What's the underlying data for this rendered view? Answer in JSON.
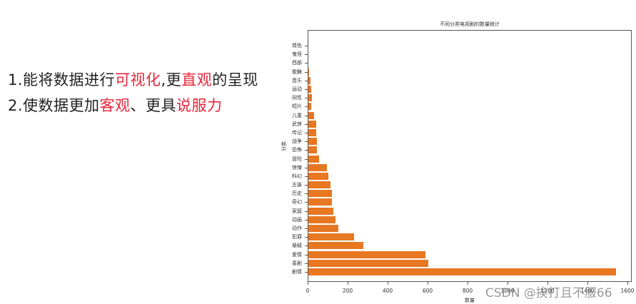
{
  "bullets": {
    "line1": {
      "prefix": "1.能将数据进行",
      "hl1": "可视化",
      "mid": ",更",
      "hl2": "直观",
      "suffix": "的呈现"
    },
    "line2": {
      "prefix": "2.使数据更加",
      "hl1": "客观",
      "mid": "、更具",
      "hl2": "说服力",
      "suffix": ""
    }
  },
  "colors": {
    "bar": "#e87722",
    "highlight": "#e8263a",
    "text": "#222222"
  },
  "watermark": "CSDN @挨打且不服66",
  "chart_data": {
    "type": "bar",
    "orientation": "horizontal",
    "title": "不同分类电视剧的数量统计",
    "xlabel": "数量",
    "ylabel": "分类",
    "xlim": [
      0,
      1600
    ],
    "xticks": [
      "0",
      "200",
      "400",
      "600",
      "800",
      "1000",
      "1200",
      "1400",
      "1600"
    ],
    "grid": false,
    "legend": null,
    "categories": [
      "剧情",
      "喜剧",
      "爱情",
      "悬疑",
      "犯罪",
      "动作",
      "动画",
      "家庭",
      "奇幻",
      "历史",
      "古装",
      "科幻",
      "惊悚",
      "冒险",
      "恐怖",
      "战争",
      "传记",
      "武侠",
      "儿童",
      "短片",
      "同性",
      "运动",
      "音乐",
      "歌舞",
      "西部",
      "鬼怪",
      "情色"
    ],
    "values": [
      1540,
      600,
      585,
      275,
      228,
      150,
      135,
      125,
      118,
      118,
      112,
      100,
      93,
      52,
      42,
      43,
      40,
      40,
      27,
      16,
      17,
      13,
      11,
      2,
      0,
      0,
      0
    ]
  }
}
